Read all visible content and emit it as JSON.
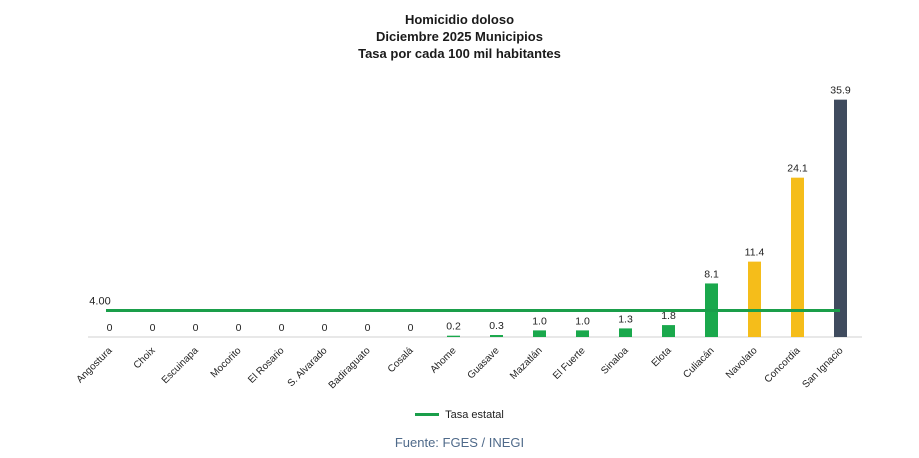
{
  "chart_data": {
    "type": "bar",
    "title": [
      "Homicidio doloso",
      "Diciembre 2025 Municipios",
      "Tasa por cada 100 mil habitantes"
    ],
    "categories": [
      "Angostura",
      "Choix",
      "Escuinapa",
      "Mocorito",
      "El Rosario",
      "S. Alvarado",
      "Badiraguato",
      "Cosalá",
      "Ahome",
      "Guasave",
      "Mazatlán",
      "El Fuerte",
      "Sinaloa",
      "Elota",
      "Culiacán",
      "Navolato",
      "Concordia",
      "San Ignacio"
    ],
    "values": [
      0,
      0,
      0,
      0,
      0,
      0,
      0,
      0,
      0.2,
      0.3,
      1.0,
      1.0,
      1.3,
      1.8,
      8.1,
      11.4,
      24.1,
      35.9
    ],
    "value_labels": [
      "0",
      "0",
      "0",
      "0",
      "0",
      "0",
      "0",
      "0",
      "0.2",
      "0.3",
      "1.0",
      "1.0",
      "1.3",
      "1.8",
      "8.1",
      "11.4",
      "24.1",
      "35.9"
    ],
    "bar_colors": [
      "#1aa84c",
      "#1aa84c",
      "#1aa84c",
      "#1aa84c",
      "#1aa84c",
      "#1aa84c",
      "#1aa84c",
      "#1aa84c",
      "#1aa84c",
      "#1aa84c",
      "#1aa84c",
      "#1aa84c",
      "#1aa84c",
      "#1aa84c",
      "#1aa84c",
      "#f5bd1a",
      "#f5bd1a",
      "#3f4b5e"
    ],
    "reference_line": {
      "name": "Tasa estatal",
      "value": 4.0,
      "label": "4.00",
      "color": "#1a9e4a"
    },
    "ylim": [
      0,
      36
    ],
    "grid": false,
    "legend": "bottom-center"
  },
  "source": "Fuente: FGES / INEGI"
}
